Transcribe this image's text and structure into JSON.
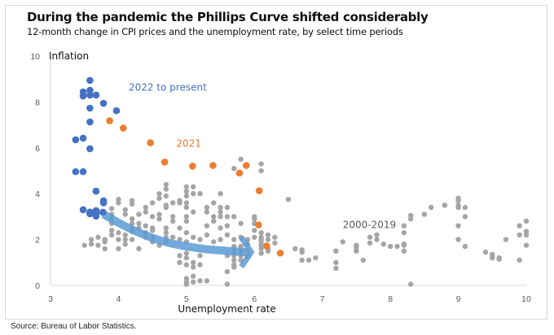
{
  "header": {
    "title": "During the pandemic the Phillips Curve shifted considerably",
    "subtitle": "12-month change in CPI prices and the unemployment rate, by select time periods"
  },
  "footer": {
    "source": "Source: Bureau of Labor Statistics."
  },
  "colors": {
    "series_2022": "#4472c4",
    "series_2021": "#ed7d31",
    "series_2000_2019": "#a5a5a5",
    "arrow": "#5b9bd5",
    "axis": "#d9d9d9"
  },
  "chart_data": {
    "type": "scatter",
    "title": "During the pandemic the Phillips Curve shifted considerably",
    "subtitle": "12-month change in CPI prices and the unemployment rate, by select time periods",
    "xlabel": "Unemployment rate",
    "ylabel": "Inflation",
    "xlim": [
      3,
      10
    ],
    "ylim": [
      0,
      10
    ],
    "xticks": [
      "3",
      "4",
      "5",
      "6",
      "7",
      "8",
      "9",
      "10"
    ],
    "yticks": [
      "0",
      "2",
      "4",
      "6",
      "8",
      "10"
    ],
    "grid": false,
    "legend": "inline labels",
    "annotations": [
      {
        "text": "2022 to present",
        "x": 4.15,
        "y": 8.5,
        "series": "2022 to present"
      },
      {
        "text": "2021",
        "x": 4.85,
        "y": 6.05,
        "series": "2021"
      },
      {
        "text": "2000-2019",
        "x": 7.3,
        "y": 2.5,
        "series": "2000-2019"
      }
    ],
    "arrow": {
      "description": "Curved arrow tracing the 2000-2019 Phillips curve from upper-left to lower-right",
      "path": [
        [
          3.78,
          3.1
        ],
        [
          4.2,
          2.4
        ],
        [
          4.7,
          1.85
        ],
        [
          5.2,
          1.6
        ],
        [
          5.6,
          1.5
        ],
        [
          5.88,
          1.45
        ]
      ]
    },
    "series": [
      {
        "name": "2022 to present",
        "points": [
          [
            3.58,
            8.94
          ],
          [
            3.48,
            8.44
          ],
          [
            3.58,
            8.51
          ],
          [
            3.48,
            8.26
          ],
          [
            3.58,
            8.3
          ],
          [
            3.67,
            8.3
          ],
          [
            3.78,
            7.94
          ],
          [
            3.58,
            7.73
          ],
          [
            3.97,
            7.62
          ],
          [
            3.58,
            7.13
          ],
          [
            3.37,
            6.35
          ],
          [
            3.48,
            6.42
          ],
          [
            3.58,
            5.96
          ],
          [
            3.37,
            4.96
          ],
          [
            3.48,
            4.96
          ],
          [
            3.67,
            4.11
          ],
          [
            3.78,
            3.69
          ],
          [
            3.78,
            3.6
          ],
          [
            3.48,
            3.3
          ],
          [
            3.58,
            3.12
          ],
          [
            3.67,
            3.26
          ],
          [
            3.77,
            3.19
          ],
          [
            3.67,
            3.12
          ],
          [
            3.58,
            3.2
          ],
          [
            3.67,
            3.02
          ]
        ]
      },
      {
        "name": "2021",
        "points": [
          [
            3.87,
            7.18
          ],
          [
            4.07,
            6.86
          ],
          [
            4.47,
            6.22
          ],
          [
            4.68,
            5.38
          ],
          [
            5.09,
            5.2
          ],
          [
            5.39,
            5.23
          ],
          [
            5.88,
            5.23
          ],
          [
            5.78,
            4.9
          ],
          [
            6.07,
            4.13
          ],
          [
            6.06,
            2.64
          ],
          [
            6.18,
            1.72
          ],
          [
            6.38,
            1.41
          ]
        ]
      },
      {
        "name": "2000-2019",
        "points": [
          [
            3.5,
            1.75
          ],
          [
            3.6,
            1.8
          ],
          [
            3.6,
            2.0
          ],
          [
            3.7,
            2.1
          ],
          [
            3.7,
            1.75
          ],
          [
            3.8,
            2.0
          ],
          [
            3.8,
            1.6
          ],
          [
            3.8,
            1.9
          ],
          [
            3.9,
            2.4
          ],
          [
            3.9,
            2.2
          ],
          [
            3.9,
            2.9
          ],
          [
            3.9,
            3.1
          ],
          [
            3.9,
            2.7
          ],
          [
            3.9,
            3.35
          ],
          [
            4.0,
            3.6
          ],
          [
            4.0,
            3.75
          ],
          [
            4.0,
            2.3
          ],
          [
            4.0,
            2.0
          ],
          [
            4.0,
            1.6
          ],
          [
            4.1,
            3.1
          ],
          [
            4.1,
            3.3
          ],
          [
            4.1,
            2.0
          ],
          [
            4.1,
            2.2
          ],
          [
            4.1,
            1.8
          ],
          [
            4.2,
            3.7
          ],
          [
            4.2,
            3.55
          ],
          [
            4.2,
            2.9
          ],
          [
            4.2,
            2.7
          ],
          [
            4.2,
            2.5
          ],
          [
            4.2,
            2.35
          ],
          [
            4.2,
            2.0
          ],
          [
            4.3,
            3.1
          ],
          [
            4.3,
            2.7
          ],
          [
            4.3,
            2.5
          ],
          [
            4.3,
            1.6
          ],
          [
            4.4,
            3.4
          ],
          [
            4.4,
            3.2
          ],
          [
            4.4,
            2.6
          ],
          [
            4.4,
            2.3
          ],
          [
            4.4,
            2.1
          ],
          [
            4.5,
            3.6
          ],
          [
            4.5,
            3.0
          ],
          [
            4.5,
            2.5
          ],
          [
            4.5,
            2.4
          ],
          [
            4.5,
            2.1
          ],
          [
            4.5,
            1.9
          ],
          [
            4.6,
            4.0
          ],
          [
            4.6,
            3.8
          ],
          [
            4.6,
            3.1
          ],
          [
            4.6,
            2.9
          ],
          [
            4.6,
            1.75
          ],
          [
            4.7,
            4.4
          ],
          [
            4.7,
            4.2
          ],
          [
            4.7,
            3.9
          ],
          [
            4.7,
            3.5
          ],
          [
            4.7,
            3.4
          ],
          [
            4.7,
            2.5
          ],
          [
            4.7,
            2.3
          ],
          [
            4.7,
            2.1
          ],
          [
            4.7,
            1.9
          ],
          [
            4.8,
            3.0
          ],
          [
            4.8,
            2.8
          ],
          [
            4.8,
            2.1
          ],
          [
            4.8,
            3.6
          ],
          [
            4.9,
            3.7
          ],
          [
            4.9,
            3.6
          ],
          [
            4.9,
            2.5
          ],
          [
            4.9,
            2.0
          ],
          [
            4.9,
            1.3
          ],
          [
            4.9,
            1.0
          ],
          [
            5.0,
            4.3
          ],
          [
            5.0,
            4.1
          ],
          [
            5.0,
            3.9
          ],
          [
            5.0,
            3.6
          ],
          [
            5.0,
            3.4
          ],
          [
            5.0,
            3.0
          ],
          [
            5.0,
            2.8
          ],
          [
            5.0,
            2.3
          ],
          [
            5.0,
            1.9
          ],
          [
            5.0,
            1.4
          ],
          [
            5.0,
            1.2
          ],
          [
            5.0,
            0.9
          ],
          [
            5.0,
            0.3
          ],
          [
            5.0,
            0.15
          ],
          [
            5.0,
            0.05
          ],
          [
            5.1,
            4.3
          ],
          [
            5.1,
            4.0
          ],
          [
            5.1,
            3.2
          ],
          [
            5.1,
            2.1
          ],
          [
            5.1,
            1.0
          ],
          [
            5.1,
            0.8
          ],
          [
            5.1,
            0.4
          ],
          [
            5.1,
            0.15
          ],
          [
            5.2,
            4.0
          ],
          [
            5.2,
            2.0
          ],
          [
            5.2,
            1.3
          ],
          [
            5.2,
            0.9
          ],
          [
            5.2,
            0.2
          ],
          [
            5.3,
            3.4
          ],
          [
            5.3,
            3.2
          ],
          [
            5.3,
            2.6
          ],
          [
            5.3,
            2.2
          ],
          [
            5.3,
            0.2
          ],
          [
            5.4,
            3.6
          ],
          [
            5.4,
            3.0
          ],
          [
            5.4,
            2.8
          ],
          [
            5.4,
            1.9
          ],
          [
            5.5,
            4.0
          ],
          [
            5.5,
            3.4
          ],
          [
            5.5,
            3.2
          ],
          [
            5.5,
            3.0
          ],
          [
            5.5,
            2.5
          ],
          [
            5.5,
            2.0
          ],
          [
            5.6,
            3.4
          ],
          [
            5.6,
            3.0
          ],
          [
            5.6,
            2.6
          ],
          [
            5.6,
            2.2
          ],
          [
            5.6,
            1.3
          ],
          [
            5.6,
            0.6
          ],
          [
            5.6,
            0.05
          ],
          [
            5.7,
            5.1
          ],
          [
            5.7,
            3.0
          ],
          [
            5.7,
            2.0
          ],
          [
            5.7,
            1.7
          ],
          [
            5.7,
            1.5
          ],
          [
            5.7,
            1.3
          ],
          [
            5.7,
            1.1
          ],
          [
            5.7,
            0.9
          ],
          [
            5.7,
            0.8
          ],
          [
            5.8,
            5.5
          ],
          [
            5.8,
            2.7
          ],
          [
            5.8,
            2.1
          ],
          [
            5.8,
            1.7
          ],
          [
            5.8,
            1.5
          ],
          [
            5.8,
            1.3
          ],
          [
            5.8,
            1.1
          ],
          [
            5.9,
            2.0
          ],
          [
            5.9,
            1.8
          ],
          [
            5.9,
            1.5
          ],
          [
            5.9,
            1.3
          ],
          [
            6.0,
            3.0
          ],
          [
            6.0,
            2.9
          ],
          [
            6.0,
            2.4
          ],
          [
            6.0,
            2.1
          ],
          [
            6.0,
            2.7
          ],
          [
            6.1,
            5.3
          ],
          [
            6.1,
            5.0
          ],
          [
            6.1,
            2.3
          ],
          [
            6.1,
            2.1
          ],
          [
            6.1,
            2.0
          ],
          [
            6.1,
            1.9
          ],
          [
            6.1,
            1.75
          ],
          [
            6.1,
            1.6
          ],
          [
            6.1,
            1.4
          ],
          [
            6.2,
            2.2
          ],
          [
            6.2,
            2.0
          ],
          [
            6.2,
            1.6
          ],
          [
            6.2,
            1.5
          ],
          [
            6.3,
            2.1
          ],
          [
            6.3,
            1.85
          ],
          [
            6.5,
            3.75
          ],
          [
            6.6,
            1.6
          ],
          [
            6.7,
            1.55
          ],
          [
            6.7,
            1.45
          ],
          [
            6.7,
            1.1
          ],
          [
            6.8,
            1.1
          ],
          [
            6.9,
            1.2
          ],
          [
            7.2,
            1.5
          ],
          [
            7.2,
            1.0
          ],
          [
            7.2,
            0.75
          ],
          [
            7.3,
            1.9
          ],
          [
            7.5,
            1.75
          ],
          [
            7.5,
            1.65
          ],
          [
            7.5,
            1.5
          ],
          [
            7.6,
            1.1
          ],
          [
            7.7,
            2.1
          ],
          [
            7.7,
            1.85
          ],
          [
            7.8,
            2.2
          ],
          [
            7.8,
            2.0
          ],
          [
            7.9,
            1.8
          ],
          [
            8.0,
            1.7
          ],
          [
            8.1,
            1.7
          ],
          [
            8.2,
            2.3
          ],
          [
            8.2,
            1.8
          ],
          [
            8.2,
            1.75
          ],
          [
            8.2,
            2.6
          ],
          [
            8.2,
            1.5
          ],
          [
            8.3,
            3.05
          ],
          [
            8.3,
            2.9
          ],
          [
            8.3,
            0.05
          ],
          [
            8.5,
            3.1
          ],
          [
            8.6,
            3.4
          ],
          [
            8.8,
            3.5
          ],
          [
            9.0,
            3.8
          ],
          [
            9.0,
            3.7
          ],
          [
            9.0,
            3.5
          ],
          [
            9.0,
            3.4
          ],
          [
            9.0,
            2.6
          ],
          [
            9.0,
            2.0
          ],
          [
            9.1,
            3.4
          ],
          [
            9.1,
            3.0
          ],
          [
            9.1,
            1.7
          ],
          [
            9.4,
            1.45
          ],
          [
            9.5,
            1.35
          ],
          [
            9.5,
            1.2
          ],
          [
            9.6,
            1.15
          ],
          [
            9.6,
            1.2
          ],
          [
            9.7,
            2.0
          ],
          [
            9.9,
            1.1
          ],
          [
            9.9,
            2.6
          ],
          [
            9.9,
            2.2
          ],
          [
            10.0,
            2.8
          ],
          [
            10.0,
            2.35
          ],
          [
            10.0,
            2.2
          ],
          [
            10.0,
            1.75
          ]
        ]
      }
    ]
  }
}
